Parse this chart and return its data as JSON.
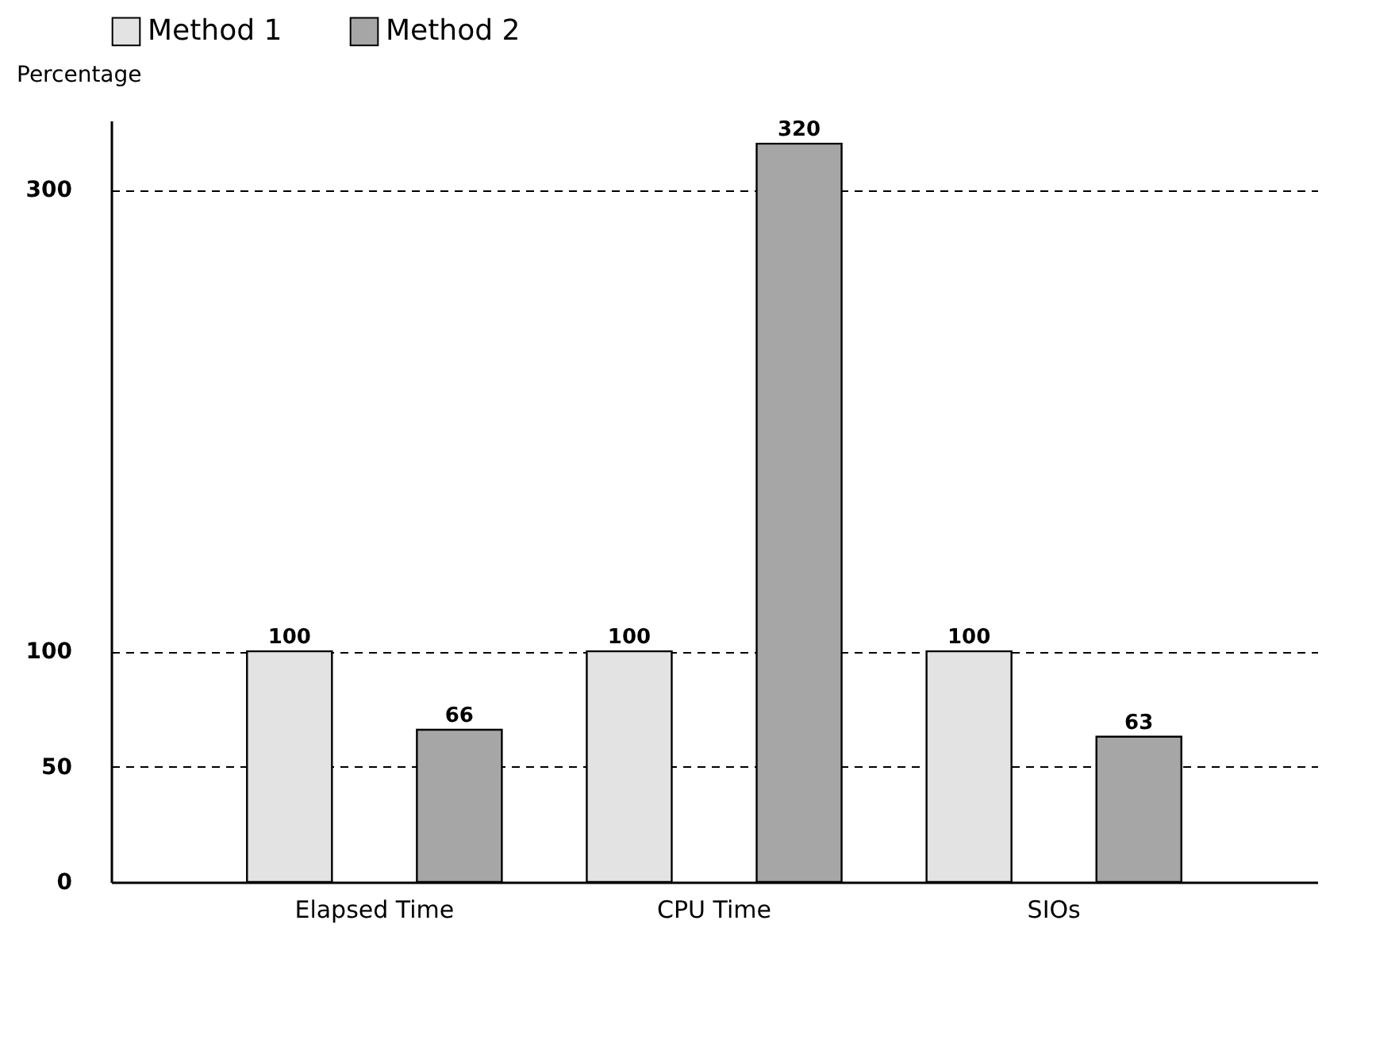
{
  "chart_data": {
    "type": "bar",
    "ylabel": "Percentage",
    "categories": [
      "Elapsed Time",
      "CPU Time",
      "SIOs"
    ],
    "series": [
      {
        "name": "Method 1",
        "color": "#e3e3e3",
        "values": [
          100,
          100,
          100
        ]
      },
      {
        "name": "Method 2",
        "color": "#a6a6a6",
        "values": [
          66,
          320,
          63
        ]
      }
    ],
    "ylim": [
      0,
      330
    ],
    "yticks": [
      0,
      50,
      100,
      300
    ],
    "grid": "y",
    "legend": "top",
    "data_labels": true
  }
}
